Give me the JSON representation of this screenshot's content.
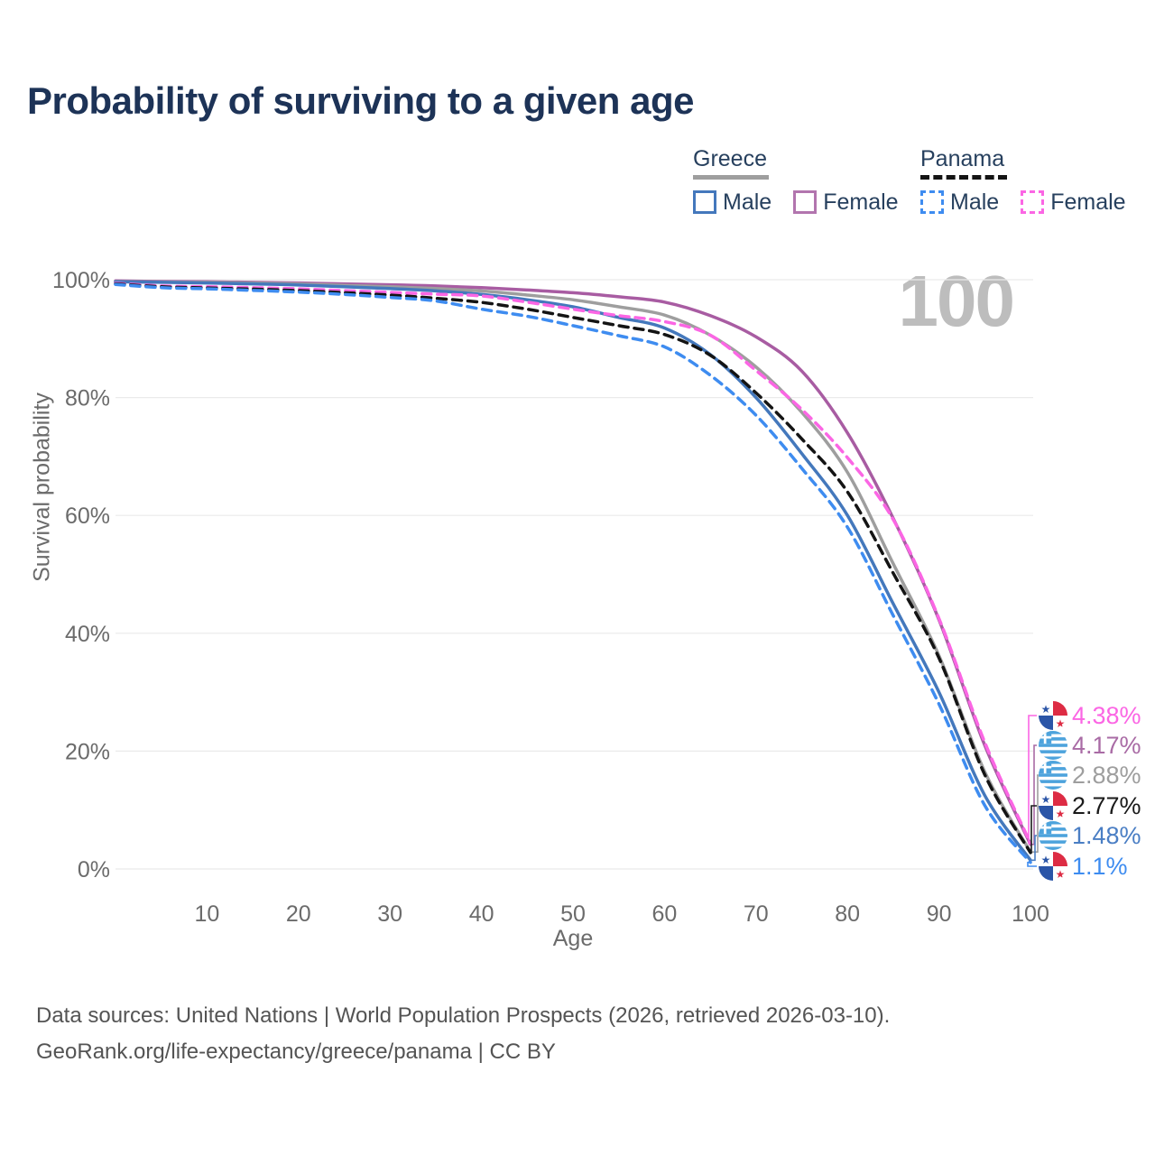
{
  "title": "Probability of surviving to a given age",
  "watermark_age": "100",
  "legend": {
    "groups": [
      {
        "country": "Greece",
        "line_style": "solid",
        "underline_color": "#9e9e9e",
        "items": [
          {
            "label": "Male",
            "color": "#4478bc"
          },
          {
            "label": "Female",
            "color": "#b275ae"
          }
        ]
      },
      {
        "country": "Panama",
        "line_style": "dashed",
        "underline_color": "#141414",
        "items": [
          {
            "label": "Male",
            "color": "#3e8cf0"
          },
          {
            "label": "Female",
            "color": "#fb66e4"
          }
        ]
      }
    ]
  },
  "chart_data": {
    "type": "line",
    "title": "Probability of surviving to a given age",
    "xlabel": "Age",
    "ylabel": "Survival probability",
    "xlim": [
      0,
      100
    ],
    "ylim": [
      0,
      100
    ],
    "grid": "horizontal",
    "legend_position": "top-right",
    "x_ticks": [
      10,
      20,
      30,
      40,
      50,
      60,
      70,
      80,
      90,
      100
    ],
    "y_ticks": [
      {
        "value": 0,
        "label": "0%"
      },
      {
        "value": 20,
        "label": "20%"
      },
      {
        "value": 40,
        "label": "40%"
      },
      {
        "value": 60,
        "label": "60%"
      },
      {
        "value": 80,
        "label": "80%"
      },
      {
        "value": 100,
        "label": "100%"
      }
    ],
    "x": [
      0,
      5,
      10,
      15,
      20,
      25,
      30,
      35,
      40,
      45,
      50,
      55,
      60,
      65,
      70,
      75,
      80,
      85,
      90,
      95,
      100
    ],
    "series": [
      {
        "id": "greece-female",
        "name": "Greece Female",
        "country": "Greece",
        "sex": "Female",
        "color": "#a85ca2",
        "dash": "solid",
        "values": [
          99.8,
          99.7,
          99.65,
          99.55,
          99.45,
          99.3,
          99.15,
          98.95,
          98.65,
          98.25,
          97.8,
          97.1,
          96.2,
          93.9,
          90.3,
          84.5,
          74.0,
          59.5,
          42.3,
          21.0,
          4.17
        ]
      },
      {
        "id": "greece",
        "name": "Greece",
        "country": "Greece",
        "sex": "Both",
        "color": "#9e9e9e",
        "dash": "solid",
        "values": [
          99.7,
          99.6,
          99.55,
          99.45,
          99.3,
          99.05,
          98.8,
          98.5,
          98.1,
          97.4,
          96.6,
          95.4,
          94.0,
          90.6,
          85.2,
          77.5,
          67.3,
          51.8,
          36.2,
          16.5,
          2.88
        ]
      },
      {
        "id": "greece-male",
        "name": "Greece Male",
        "country": "Greece",
        "sex": "Male",
        "color": "#4478bc",
        "dash": "solid",
        "values": [
          99.65,
          99.55,
          99.45,
          99.3,
          99.1,
          98.8,
          98.5,
          98.1,
          97.5,
          96.6,
          95.4,
          93.6,
          91.8,
          87.3,
          80.0,
          70.5,
          60.0,
          45.0,
          30.0,
          12.5,
          1.48
        ]
      },
      {
        "id": "panama-female",
        "name": "Panama Female",
        "country": "Panama",
        "sex": "Female",
        "color": "#fb66e4",
        "dash": "dashed",
        "values": [
          99.4,
          98.95,
          98.8,
          98.65,
          98.45,
          98.15,
          97.85,
          97.55,
          97.25,
          96.2,
          95.0,
          93.9,
          92.9,
          90.6,
          84.6,
          78.0,
          69.8,
          59.3,
          42.5,
          21.5,
          4.38
        ]
      },
      {
        "id": "panama",
        "name": "Panama",
        "country": "Panama",
        "sex": "Both",
        "color": "#141414",
        "dash": "dashed",
        "values": [
          99.3,
          98.8,
          98.6,
          98.4,
          98.15,
          97.8,
          97.4,
          96.85,
          96.15,
          95.0,
          93.6,
          92.2,
          90.7,
          87.2,
          80.8,
          73.0,
          64.0,
          50.2,
          35.8,
          16.0,
          2.77
        ]
      },
      {
        "id": "panama-male",
        "name": "Panama Male",
        "country": "Panama",
        "sex": "Male",
        "color": "#3e8cf0",
        "dash": "dashed",
        "values": [
          99.2,
          98.65,
          98.45,
          98.2,
          97.9,
          97.5,
          97.0,
          96.4,
          95.0,
          93.8,
          92.2,
          90.5,
          88.6,
          83.8,
          77.0,
          68.0,
          58.0,
          43.0,
          28.0,
          10.8,
          1.1
        ]
      }
    ],
    "end_labels": [
      {
        "id": "panama-female",
        "text": "4.38%",
        "value": 4.38,
        "flag": "panama",
        "color": "#fb66e4"
      },
      {
        "id": "greece-female",
        "text": "4.17%",
        "value": 4.17,
        "flag": "greece",
        "color": "#a96ba5"
      },
      {
        "id": "greece",
        "text": "2.88%",
        "value": 2.88,
        "flag": "greece",
        "color": "#9e9e9e"
      },
      {
        "id": "panama",
        "text": "2.77%",
        "value": 2.77,
        "flag": "panama",
        "color": "#1a1a1a"
      },
      {
        "id": "greece-male",
        "text": "1.48%",
        "value": 1.48,
        "flag": "greece",
        "color": "#4a7ec4"
      },
      {
        "id": "panama-male",
        "text": "1.1%",
        "value": 1.1,
        "flag": "panama",
        "color": "#3e8cf0"
      }
    ]
  },
  "footer": {
    "line1": "Data sources: United Nations | World Population Prospects (2026, retrieved 2026-03-10).",
    "line2": "GeoRank.org/life-expectancy/greece/panama | CC BY"
  }
}
